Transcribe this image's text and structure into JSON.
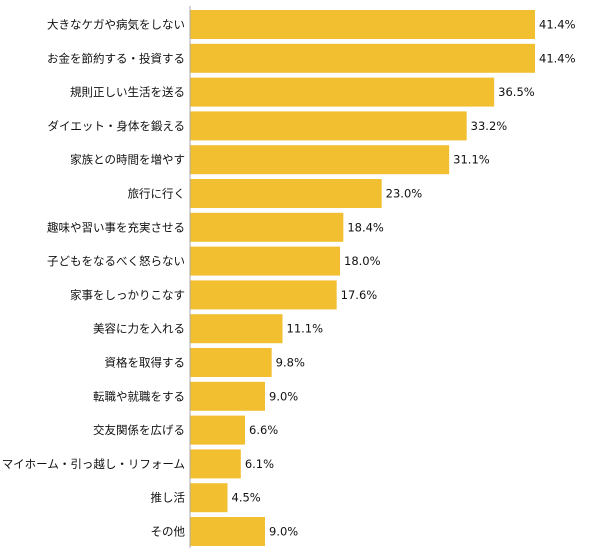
{
  "chart_data": {
    "type": "bar",
    "orientation": "horizontal",
    "title": "",
    "xlabel": "",
    "ylabel": "",
    "value_suffix": "%",
    "xlim": [
      0,
      41.4
    ],
    "grid": false,
    "bar_color": "#F2BF30",
    "axis_color": "#A8A8A8",
    "categories": [
      "大きなケガや病気をしない",
      "お金を節約する・投資する",
      "規則正しい生活を送る",
      "ダイエット・身体を鍛える",
      "家族との時間を増やす",
      "旅行に行く",
      "趣味や習い事を充実させる",
      "子どもをなるべく怒らない",
      "家事をしっかりこなす",
      "美容に力を入れる",
      "資格を取得する",
      "転職や就職をする",
      "交友関係を広げる",
      "マイホーム・引っ越し・リフォーム",
      "推し活",
      "その他"
    ],
    "values": [
      41.4,
      41.4,
      36.5,
      33.2,
      31.1,
      23.0,
      18.4,
      18.0,
      17.6,
      11.1,
      9.8,
      9.0,
      6.6,
      6.1,
      4.5,
      9.0
    ],
    "value_labels": [
      "41.4%",
      "41.4%",
      "36.5%",
      "33.2%",
      "31.1%",
      "23.0%",
      "18.4%",
      "18.0%",
      "17.6%",
      "11.1%",
      "9.8%",
      "9.0%",
      "6.6%",
      "6.1%",
      "4.5%",
      "9.0%"
    ]
  }
}
